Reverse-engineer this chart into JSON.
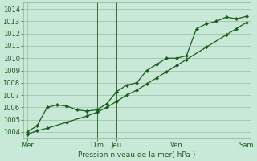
{
  "title": "",
  "xlabel": "Pression niveau de la mer( hPa )",
  "ylabel": "",
  "bg_color": "#c8e8d8",
  "plot_bg_color": "#c8e8d8",
  "grid_color": "#90b090",
  "line_color": "#1a5c1a",
  "marker_color": "#1a5c1a",
  "ylim": [
    1003.5,
    1014.5
  ],
  "yticks": [
    1004,
    1005,
    1006,
    1007,
    1008,
    1009,
    1010,
    1011,
    1012,
    1013,
    1014
  ],
  "day_labels": [
    "Mer",
    "Dim",
    "Jeu",
    "Ven",
    "Sam"
  ],
  "day_positions": [
    0.0,
    3.5,
    4.5,
    7.5,
    11.0
  ],
  "xlim": [
    -0.2,
    11.2
  ],
  "series1_x": [
    0.0,
    0.5,
    1.0,
    1.5,
    2.0,
    2.5,
    3.0,
    3.5,
    4.0,
    4.5,
    5.0,
    5.5,
    6.0,
    6.5,
    7.0,
    7.5,
    8.0,
    8.5,
    9.0,
    9.5,
    10.0,
    10.5,
    11.0
  ],
  "series1_y": [
    1004.0,
    1004.5,
    1006.0,
    1006.2,
    1006.1,
    1005.8,
    1005.7,
    1005.8,
    1006.3,
    1007.3,
    1007.8,
    1008.0,
    1009.0,
    1009.5,
    1010.0,
    1010.0,
    1010.2,
    1012.4,
    1012.8,
    1013.0,
    1013.35,
    1013.2,
    1013.4
  ],
  "series2_x": [
    0.0,
    0.5,
    1.0,
    2.0,
    3.0,
    3.5,
    4.0,
    4.5,
    5.0,
    5.5,
    6.0,
    6.5,
    7.0,
    7.5,
    8.0,
    9.0,
    10.0,
    10.5,
    11.0
  ],
  "series2_y": [
    1003.8,
    1004.1,
    1004.3,
    1004.8,
    1005.3,
    1005.6,
    1006.0,
    1006.5,
    1007.0,
    1007.4,
    1007.9,
    1008.4,
    1008.9,
    1009.4,
    1009.9,
    1010.9,
    1011.9,
    1012.4,
    1012.9
  ],
  "vline_positions": [
    3.5,
    4.5,
    7.5
  ],
  "vline_color": "#3a6a3a"
}
